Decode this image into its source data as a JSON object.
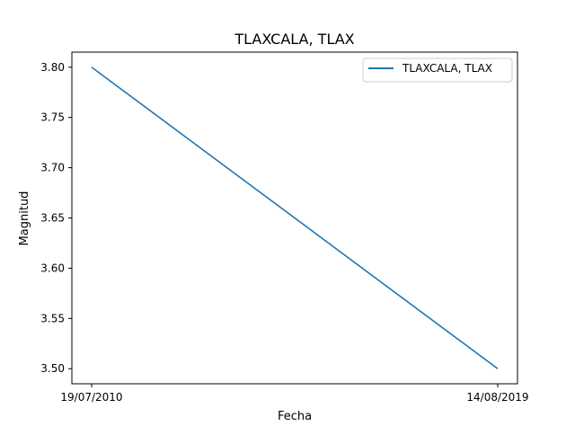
{
  "chart_data": {
    "type": "line",
    "title": "TLAXCALA, TLAX",
    "xlabel": "Fecha",
    "ylabel": "Magnitud",
    "categories": [
      "19/07/2010",
      "14/08/2019"
    ],
    "series": [
      {
        "name": "TLAXCALA, TLAX",
        "values": [
          3.8,
          3.5
        ],
        "color": "#1f77b4"
      }
    ],
    "ylim": [
      3.485,
      3.815
    ],
    "yticks": [
      "3.50",
      "3.55",
      "3.60",
      "3.65",
      "3.70",
      "3.75",
      "3.80"
    ],
    "grid": false,
    "legend": "upper right"
  }
}
